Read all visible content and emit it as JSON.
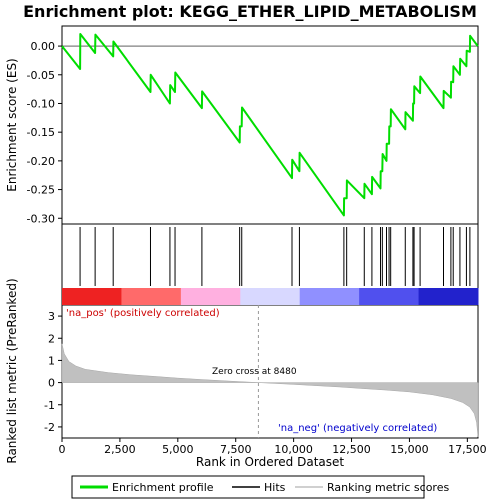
{
  "chart_data": {
    "type": "line",
    "title": "Enrichment plot: KEGG_ETHER_LIPID_METABOLISM",
    "top_panel": {
      "ylabel": "Enrichment score (ES)",
      "ylim": [
        -0.31,
        0.035
      ],
      "yticks": [
        0.0,
        -0.05,
        -0.1,
        -0.15,
        -0.2,
        -0.25,
        -0.3
      ],
      "ytick_labels": [
        "0.00",
        "-0.05",
        "-0.10",
        "-0.15",
        "-0.20",
        "-0.25",
        "-0.30"
      ],
      "series": [
        {
          "name": "Enrichment profile",
          "color": "#00dd00",
          "points": [
            [
              0,
              0.0
            ],
            [
              780,
              -0.04
            ],
            [
              790,
              0.021
            ],
            [
              1430,
              -0.012
            ],
            [
              1440,
              0.02
            ],
            [
              2210,
              -0.018
            ],
            [
              2220,
              0.008
            ],
            [
              3820,
              -0.08
            ],
            [
              3830,
              -0.05
            ],
            [
              4660,
              -0.1
            ],
            [
              4670,
              -0.068
            ],
            [
              4880,
              -0.08
            ],
            [
              4890,
              -0.046
            ],
            [
              6040,
              -0.108
            ],
            [
              6050,
              -0.079
            ],
            [
              7670,
              -0.168
            ],
            [
              7680,
              -0.14
            ],
            [
              7760,
              -0.14
            ],
            [
              7770,
              -0.107
            ],
            [
              9930,
              -0.23
            ],
            [
              9940,
              -0.198
            ],
            [
              10250,
              -0.218
            ],
            [
              10260,
              -0.186
            ],
            [
              12170,
              -0.295
            ],
            [
              12180,
              -0.265
            ],
            [
              12290,
              -0.265
            ],
            [
              12300,
              -0.234
            ],
            [
              13050,
              -0.265
            ],
            [
              13060,
              -0.24
            ],
            [
              13380,
              -0.258
            ],
            [
              13390,
              -0.228
            ],
            [
              13750,
              -0.248
            ],
            [
              13760,
              -0.218
            ],
            [
              13830,
              -0.218
            ],
            [
              13840,
              -0.188
            ],
            [
              14010,
              -0.2
            ],
            [
              14020,
              -0.17
            ],
            [
              14120,
              -0.17
            ],
            [
              14130,
              -0.14
            ],
            [
              14190,
              -0.14
            ],
            [
              14200,
              -0.11
            ],
            [
              14820,
              -0.145
            ],
            [
              14830,
              -0.115
            ],
            [
              15150,
              -0.13
            ],
            [
              15160,
              -0.1
            ],
            [
              15200,
              -0.1
            ],
            [
              15210,
              -0.07
            ],
            [
              15460,
              -0.082
            ],
            [
              15470,
              -0.053
            ],
            [
              16470,
              -0.108
            ],
            [
              16480,
              -0.078
            ],
            [
              16790,
              -0.09
            ],
            [
              16800,
              -0.062
            ],
            [
              16890,
              -0.063
            ],
            [
              16900,
              -0.035
            ],
            [
              17180,
              -0.05
            ],
            [
              17190,
              -0.022
            ],
            [
              17460,
              -0.035
            ],
            [
              17470,
              -0.008
            ],
            [
              17610,
              -0.01
            ],
            [
              17620,
              0.018
            ],
            [
              17950,
              0.0
            ]
          ]
        }
      ]
    },
    "hits_panel": {
      "series_name": "Hits",
      "color": "#000000",
      "positions": [
        780,
        1430,
        2210,
        3820,
        4660,
        4880,
        6040,
        7670,
        7760,
        9930,
        10250,
        12170,
        12290,
        13050,
        13380,
        13750,
        13830,
        14010,
        14120,
        14190,
        14820,
        15150,
        15200,
        15460,
        16470,
        16790,
        16890,
        17180,
        17460,
        17610
      ]
    },
    "metric_panel": {
      "ylabel": "Ranked list metric (PreRanked)",
      "xlabel": "Rank in Ordered Dataset",
      "series_name": "Ranking metric scores",
      "color": "#c0c0c0",
      "ylim": [
        -2.5,
        3.5
      ],
      "yticks": [
        3,
        2,
        1,
        0,
        -1,
        -2
      ],
      "ytick_labels": [
        "3",
        "2",
        "1",
        "0",
        "-1",
        "-2"
      ],
      "curve": [
        [
          0,
          1.75
        ],
        [
          100,
          1.3
        ],
        [
          300,
          0.95
        ],
        [
          600,
          0.75
        ],
        [
          1000,
          0.6
        ],
        [
          2000,
          0.45
        ],
        [
          3000,
          0.35
        ],
        [
          4000,
          0.28
        ],
        [
          5000,
          0.2
        ],
        [
          6000,
          0.14
        ],
        [
          7000,
          0.08
        ],
        [
          8480,
          0.0
        ],
        [
          10000,
          -0.08
        ],
        [
          11000,
          -0.14
        ],
        [
          12000,
          -0.2
        ],
        [
          13000,
          -0.27
        ],
        [
          14000,
          -0.34
        ],
        [
          15000,
          -0.42
        ],
        [
          16000,
          -0.55
        ],
        [
          16800,
          -0.72
        ],
        [
          17300,
          -0.9
        ],
        [
          17600,
          -1.1
        ],
        [
          17800,
          -1.4
        ],
        [
          17900,
          -1.8
        ],
        [
          17960,
          -2.45
        ]
      ],
      "zero_cross_label": "Zero cross at 8480",
      "zero_cross": 8480,
      "pos_label": "'na_pos' (positively correlated)",
      "neg_label": "'na_neg' (negatively correlated)"
    },
    "xlim": [
      0,
      17960
    ],
    "xticks": [
      0,
      2500,
      5000,
      7500,
      10000,
      12500,
      15000,
      17500
    ],
    "xtick_labels": [
      "0",
      "2,500",
      "5,000",
      "7,500",
      "10,000",
      "12,500",
      "15,000",
      "17,500"
    ],
    "gradient_colors": [
      "#ee2222",
      "#ff6a6a",
      "#ffb0e0",
      "#d8d8ff",
      "#9090ff",
      "#5050ee",
      "#2222cc"
    ],
    "legend": [
      {
        "label": "Enrichment profile",
        "color": "#00dd00"
      },
      {
        "label": "Hits",
        "color": "#000000"
      },
      {
        "label": "Ranking metric scores",
        "color": "#c0c0c0"
      }
    ],
    "legend_position": "bottom",
    "grid": false
  }
}
